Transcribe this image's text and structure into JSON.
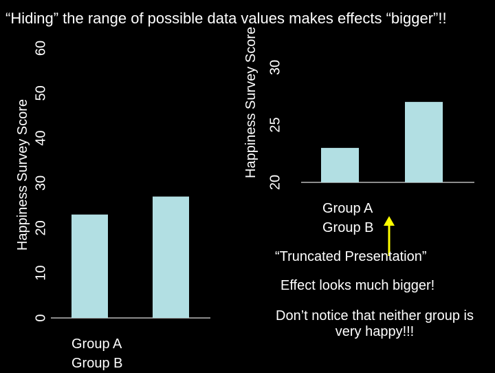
{
  "slide_title": "“Hiding” the range of possible data values makes effects “bigger”!!",
  "chart_data": [
    {
      "type": "bar",
      "categories": [
        "Group A",
        "Group B"
      ],
      "values": [
        23,
        27
      ],
      "ylabel": "Happiness Survey Score",
      "ylim": [
        0,
        60
      ],
      "yticks": [
        "0",
        "10",
        "20",
        "30",
        "40",
        "50",
        "60"
      ],
      "bar_color": "#b2dfe3"
    },
    {
      "type": "bar",
      "categories": [
        "Group A",
        "Group B"
      ],
      "values": [
        23,
        27
      ],
      "ylabel": "Happiness Survey Score",
      "ylim": [
        20,
        30
      ],
      "yticks": [
        "20",
        "25",
        "30"
      ],
      "bar_color": "#b2dfe3"
    }
  ],
  "annotations": {
    "truncated": "“Truncated Presentation”",
    "effect": "Effect looks much bigger!",
    "dont_notice": "Don’t notice that neither group is very happy!!!",
    "arrow_color": "#ffff00"
  }
}
